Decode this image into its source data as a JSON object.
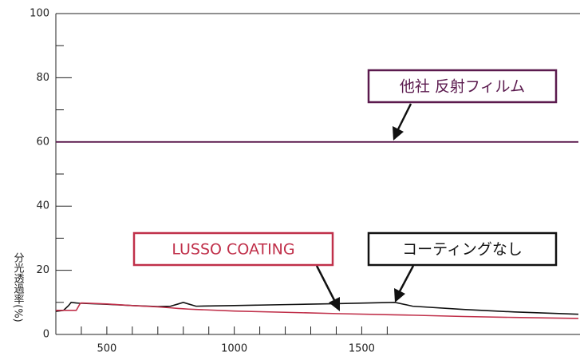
{
  "chart_data": {
    "type": "line",
    "y_label": "分光透過率(%)",
    "x": [
      300,
      330,
      350,
      360,
      380,
      395,
      400,
      500,
      600,
      700,
      750,
      780,
      800,
      820,
      850,
      1000,
      1200,
      1400,
      1630,
      1700,
      1900,
      2100,
      2350
    ],
    "series": [
      {
        "name": "他社 反射フィルム",
        "color": "#5b1a4e",
        "values": [
          60,
          60,
          60,
          60,
          60,
          60,
          60,
          60,
          60,
          60,
          60,
          60,
          60,
          60,
          60,
          60,
          60,
          60,
          60,
          60,
          60,
          60,
          60
        ]
      },
      {
        "name": "コーティングなし",
        "color": "#111111",
        "values": [
          7.2,
          7.5,
          9,
          10,
          9.8,
          9.7,
          9.7,
          9.4,
          9.0,
          8.7,
          8.8,
          9.5,
          10,
          9.5,
          8.8,
          9.0,
          9.3,
          9.6,
          10,
          8.8,
          7.8,
          7.0,
          6.3
        ]
      },
      {
        "name": "LUSSO COATING",
        "color": "#c0304a",
        "values": [
          7.5,
          7.5,
          7.5,
          7.5,
          7.5,
          9.6,
          9.8,
          9.5,
          9.0,
          8.6,
          8.3,
          8.1,
          8.0,
          7.9,
          7.8,
          7.3,
          6.9,
          6.5,
          6.1,
          6.0,
          5.6,
          5.3,
          5.0
        ]
      }
    ],
    "xlim": [
      300,
      2350
    ],
    "ylim": [
      0,
      100
    ],
    "xticks": [
      500,
      1000,
      1500
    ],
    "xminor_ticks": [
      400,
      600,
      700,
      800,
      900,
      1100,
      1200,
      1300,
      1400,
      1600
    ],
    "yticks": [
      0,
      20,
      40,
      60,
      80,
      100
    ],
    "yminor_ticks": [
      10,
      30,
      50,
      70,
      90
    ]
  }
}
